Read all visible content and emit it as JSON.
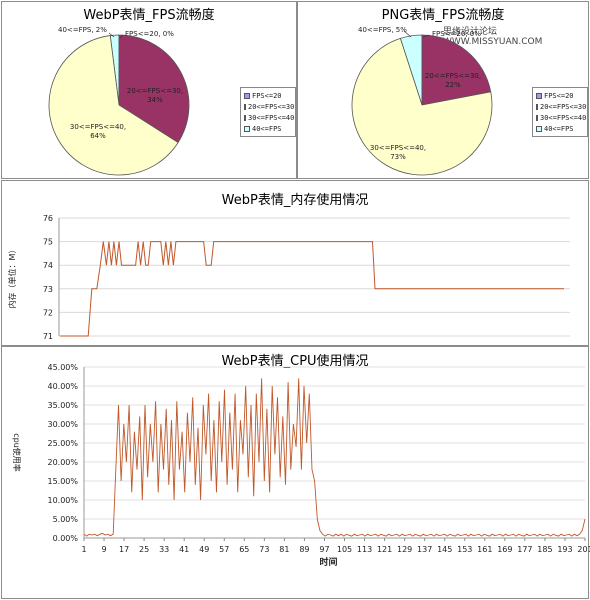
{
  "watermark": "思缘设计论坛 WWW.MISSYUAN.COM",
  "charts": [
    {
      "id": "webp_fps",
      "title": "WebP表情_FPS流畅度",
      "chart_data": {
        "type": "pie",
        "title": "WebP表情_FPS流畅度",
        "slices": [
          {
            "label": "FPS<=20",
            "value": 0,
            "text": "FPS<=20, 0%",
            "color": "#9999ff"
          },
          {
            "label": "20<=FPS<=30",
            "value": 34,
            "text": "20<=FPS<=30, 34%",
            "color": "#993366"
          },
          {
            "label": "30<=FPS<=40",
            "value": 64,
            "text": "30<=FPS<=40, 64%",
            "color": "#ffffcc"
          },
          {
            "label": "40<=FPS",
            "value": 2,
            "text": "40<=FPS, 2%",
            "color": "#ccffff"
          }
        ],
        "legend": [
          "FPS<=20",
          "20<=FPS<=30",
          "30<=FPS<=40",
          "40<=FPS"
        ],
        "legend_position": "right"
      }
    },
    {
      "id": "png_fps",
      "title": "PNG表情_FPS流畅度",
      "chart_data": {
        "type": "pie",
        "title": "PNG表情_FPS流畅度",
        "slices": [
          {
            "label": "FPS<=20",
            "value": 0,
            "text": "FPS<=20, 0%",
            "color": "#9999ff"
          },
          {
            "label": "20<=FPS<=30",
            "value": 22,
            "text": "20<=FPS<=30, 22%",
            "color": "#993366"
          },
          {
            "label": "30<=FPS<=40",
            "value": 73,
            "text": "30<=FPS<=40, 73%",
            "color": "#ffffcc"
          },
          {
            "label": "40<=FPS",
            "value": 5,
            "text": "40<=FPS, 5%",
            "color": "#ccffff"
          }
        ],
        "legend": [
          "FPS<=20",
          "20<=FPS<=30",
          "30<=FPS<=40",
          "40<=FPS"
        ],
        "legend_position": "right"
      }
    },
    {
      "id": "webp_mem",
      "title": "WebP表情_内存使用情况",
      "chart_data": {
        "type": "line",
        "title": "WebP表情_内存使用情况",
        "ylabel": "内存（单位：M）",
        "ylim": [
          71,
          76
        ],
        "yticks": [
          "71",
          "72",
          "73",
          "74",
          "75",
          "76"
        ],
        "color": "#c0582a",
        "grid": true,
        "xlim": [
          0,
          1
        ],
        "points": [
          [
            0,
            71
          ],
          [
            0.056,
            71
          ],
          [
            0.063,
            73
          ],
          [
            0.073,
            73
          ],
          [
            0.08,
            74
          ],
          [
            0.086,
            75
          ],
          [
            0.092,
            74
          ],
          [
            0.097,
            75
          ],
          [
            0.102,
            74
          ],
          [
            0.107,
            75
          ],
          [
            0.112,
            74
          ],
          [
            0.117,
            75
          ],
          [
            0.122,
            74
          ],
          [
            0.15,
            74
          ],
          [
            0.155,
            75
          ],
          [
            0.16,
            74
          ],
          [
            0.165,
            75
          ],
          [
            0.17,
            74
          ],
          [
            0.175,
            74
          ],
          [
            0.18,
            75
          ],
          [
            0.2,
            75
          ],
          [
            0.205,
            74
          ],
          [
            0.21,
            75
          ],
          [
            0.215,
            74
          ],
          [
            0.22,
            75
          ],
          [
            0.225,
            74
          ],
          [
            0.23,
            75
          ],
          [
            0.285,
            75
          ],
          [
            0.29,
            74
          ],
          [
            0.3,
            74
          ],
          [
            0.305,
            75
          ],
          [
            0.62,
            75
          ],
          [
            0.625,
            73
          ],
          [
            1,
            73
          ]
        ]
      }
    },
    {
      "id": "webp_cpu",
      "title": "WebP表情_CPU使用情况",
      "chart_data": {
        "type": "line",
        "title": "WebP表情_CPU使用情况",
        "xlabel": "时间",
        "ylabel": "cpu使用率",
        "ylim": [
          0,
          45
        ],
        "yticks": [
          "0.00%",
          "5.00%",
          "10.00%",
          "15.00%",
          "20.00%",
          "25.00%",
          "30.00%",
          "35.00%",
          "40.00%",
          "45.00%"
        ],
        "xticks": [
          "1",
          "9",
          "17",
          "25",
          "33",
          "41",
          "49",
          "57",
          "65",
          "73",
          "81",
          "89",
          "97",
          "105",
          "113",
          "121",
          "129",
          "137",
          "145",
          "153",
          "161",
          "169",
          "177",
          "185",
          "193",
          "201"
        ],
        "xlim": [
          1,
          201
        ],
        "color": "#c0582a",
        "grid": true,
        "values": [
          1,
          0.5,
          1,
          0.8,
          1,
          0.6,
          1,
          1.2,
          0.8,
          1,
          0.6,
          1,
          18,
          35,
          15,
          30,
          20,
          35,
          12,
          28,
          18,
          32,
          10,
          35,
          16,
          30,
          20,
          36,
          12,
          30,
          18,
          34,
          14,
          31,
          10,
          36,
          18,
          28,
          12,
          33,
          20,
          37,
          14,
          29,
          10,
          35,
          22,
          38,
          15,
          31,
          12,
          36,
          20,
          39,
          14,
          33,
          18,
          38,
          12,
          31,
          22,
          40,
          16,
          35,
          11,
          38,
          20,
          42,
          15,
          34,
          12,
          40,
          22,
          37,
          16,
          32,
          14,
          41,
          18,
          30,
          24,
          42,
          18,
          40,
          25,
          38,
          18,
          15,
          5,
          2,
          1,
          0.5,
          1,
          0.8,
          0.5,
          1,
          0.6,
          1,
          0.5,
          1,
          0.7,
          0.5,
          1,
          0.6,
          0.8,
          1,
          0.5,
          1,
          0.6,
          0.8,
          1,
          0.5,
          1,
          0.7,
          0.5,
          1,
          0.6,
          0.8,
          1,
          0.5,
          1,
          0.6,
          0.8,
          1,
          0.5,
          1,
          0.7,
          0.5,
          1,
          0.6,
          0.8,
          1,
          0.5,
          1,
          0.6,
          0.8,
          1,
          0.5,
          1,
          0.7,
          0.5,
          1,
          0.6,
          0.8,
          1,
          0.5,
          1,
          0.6,
          0.8,
          1,
          0.5,
          1,
          0.7,
          0.5,
          1,
          0.6,
          0.8,
          1,
          0.5,
          1,
          0.6,
          0.8,
          1,
          0.5,
          1,
          0.7,
          0.5,
          1,
          0.6,
          0.8,
          1,
          0.5,
          1,
          0.6,
          0.8,
          1,
          0.5,
          1,
          0.7,
          0.5,
          1,
          0.6,
          0.8,
          1,
          0.5,
          1,
          0.6,
          1,
          2,
          5
        ]
      }
    }
  ]
}
